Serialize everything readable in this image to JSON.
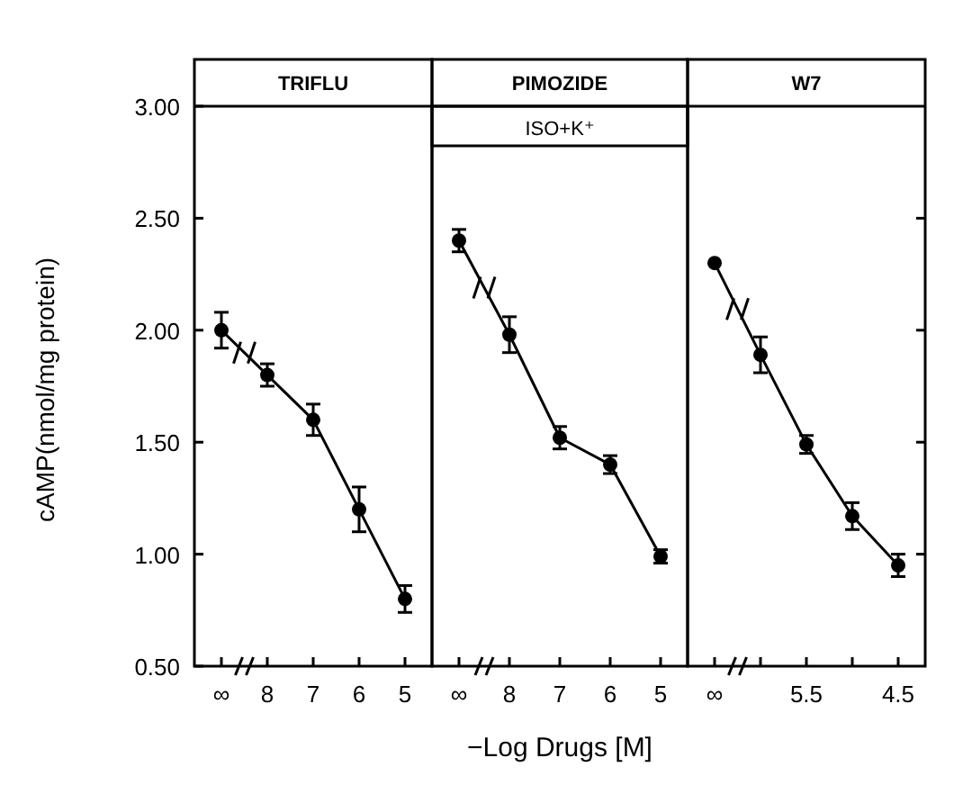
{
  "chart_data": [
    {
      "type": "line",
      "title": "TRIFLU",
      "ylabel": "cAMP(nmol/mg protein)",
      "categories": [
        "∞",
        "8",
        "7",
        "6",
        "5"
      ],
      "ylim": [
        0.5,
        3.0
      ],
      "yticks": [
        {
          "value": 0.5,
          "label": "0.50"
        },
        {
          "value": 1,
          "label": "1.00"
        },
        {
          "value": 1.5,
          "label": "1.50"
        },
        {
          "value": 2,
          "label": "2.00"
        },
        {
          "value": 2.5,
          "label": "2.50"
        },
        {
          "value": 3,
          "label": "3.00"
        }
      ],
      "marker": "circle",
      "line_style": "solid",
      "series": [
        {
          "color": "#000000",
          "values": [
            2.0,
            1.8,
            1.6,
            1.2,
            0.8
          ],
          "errors": [
            0.08,
            0.05,
            0.07,
            0.1,
            0.06
          ]
        }
      ]
    },
    {
      "type": "line",
      "title": "PIMOZIDE",
      "subtitle": "ISO+K⁺",
      "xlabel": "−Log Drugs [M]",
      "categories": [
        "∞",
        "8",
        "7",
        "6",
        "5"
      ],
      "ylim": [
        0.5,
        3.0
      ],
      "tick_labels": "x",
      "marker": "circle",
      "line_style": "solid",
      "series": [
        {
          "color": "#000000",
          "values": [
            2.4,
            1.98,
            1.52,
            1.4,
            0.99
          ],
          "errors": [
            0.05,
            0.08,
            0.05,
            0.04,
            0.03
          ]
        }
      ]
    },
    {
      "type": "line",
      "title": "W7",
      "categories": [
        "∞",
        null,
        "5.5",
        null,
        "4.5"
      ],
      "ylim": [
        0.5,
        3.0
      ],
      "yticks": [
        {
          "value": 1,
          "label": null
        },
        {
          "value": 1.5,
          "label": null
        },
        {
          "value": 2,
          "label": null
        },
        {
          "value": 2.5,
          "label": null
        }
      ],
      "tick_labels": "x",
      "marker": "circle",
      "line_style": "solid",
      "series": [
        {
          "color": "#000000",
          "values": [
            2.3,
            1.89,
            1.49,
            1.17,
            0.95
          ],
          "errors": [
            null,
            0.08,
            0.04,
            0.06,
            0.05
          ]
        }
      ]
    }
  ]
}
